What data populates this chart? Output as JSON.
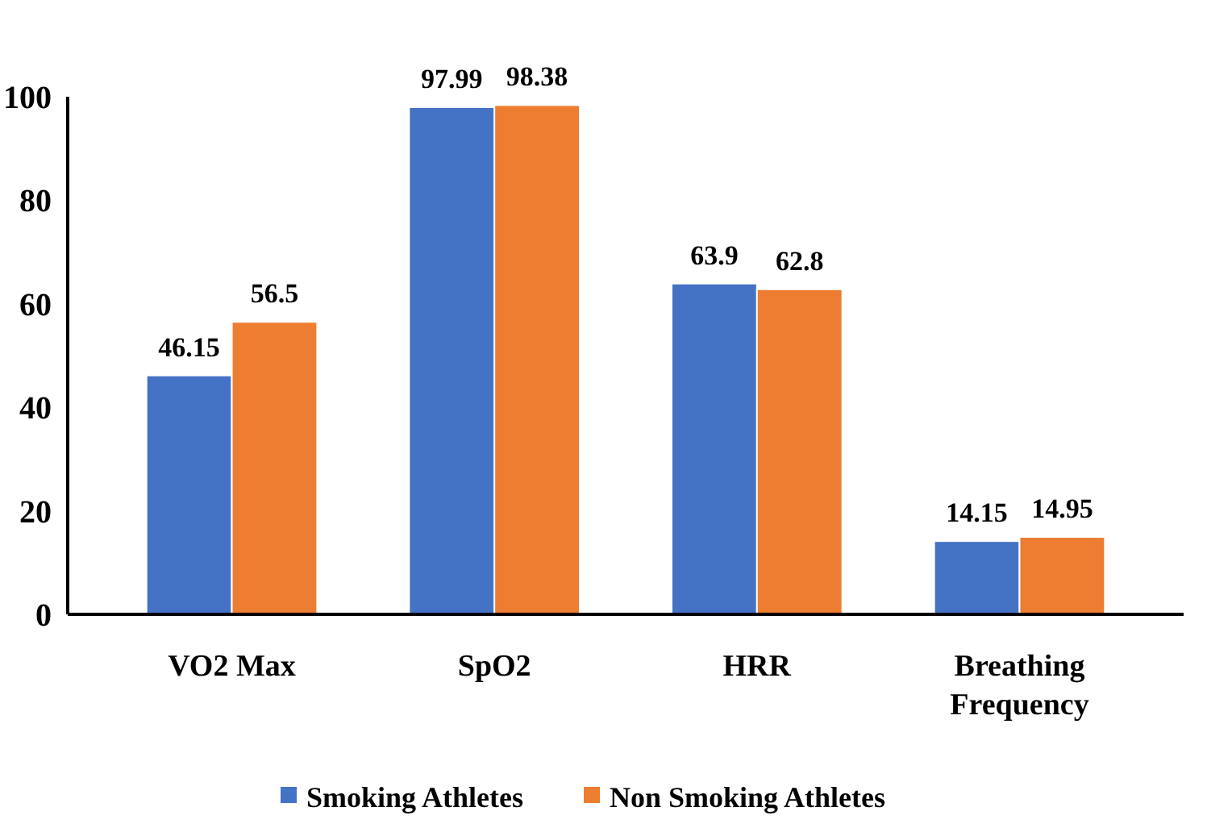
{
  "chart_data": {
    "type": "bar",
    "categories": [
      "VO2 Max",
      "SpO2",
      "HRR",
      "Breathing Frequency"
    ],
    "series": [
      {
        "name": "Smoking Athletes",
        "color": "#4472c4",
        "values": [
          46.15,
          97.99,
          63.9,
          14.15
        ]
      },
      {
        "name": "Non Smoking Athletes",
        "color": "#ed7d31",
        "values": [
          56.5,
          98.38,
          62.8,
          14.95
        ]
      }
    ],
    "ylim": [
      0,
      100
    ],
    "yticks": [
      0,
      20,
      40,
      60,
      80,
      100
    ],
    "grid": false,
    "legend": "bottom",
    "data_labels": true
  }
}
